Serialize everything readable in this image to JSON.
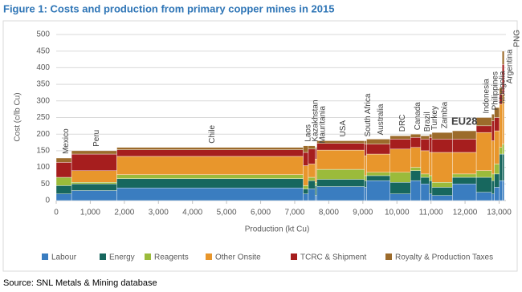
{
  "chart_data": {
    "type": "variable-width-stacked-bar",
    "title": "Figure 1: Costs and production from primary copper mines in 2015",
    "source": "Source: SNL Metals & Mining database",
    "x_label": "Production (kt Cu)",
    "y_label": "Cost (c/lb Cu)",
    "categories": [
      "Mexico",
      "Peru",
      "Chile",
      "Laos",
      "Kazakhstan",
      "Mauritania",
      "USA",
      "South Africa",
      "Australia",
      "DRC",
      "Canada",
      "Brazil",
      "Turkey",
      "Zambia",
      "EU28",
      "Indonesia",
      "Philippines",
      "Mongolia",
      "Argentina",
      "PNG"
    ],
    "highlight": "EU28",
    "production": [
      450,
      1330,
      5470,
      150,
      200,
      50,
      1400,
      60,
      690,
      600,
      300,
      250,
      80,
      600,
      700,
      450,
      80,
      150,
      80,
      60
    ],
    "series": [
      {
        "name": "Labour",
        "color": "#3a7dc0",
        "values": [
          20,
          30,
          38,
          20,
          35,
          15,
          42,
          40,
          60,
          20,
          60,
          50,
          20,
          15,
          50,
          25,
          20,
          40,
          60,
          60
        ]
      },
      {
        "name": "Energy",
        "color": "#17675e",
        "values": [
          25,
          20,
          28,
          15,
          25,
          30,
          22,
          20,
          15,
          35,
          30,
          20,
          40,
          25,
          20,
          45,
          40,
          40,
          80,
          80
        ]
      },
      {
        "name": "Reagents",
        "color": "#9bbb3b",
        "values": [
          25,
          5,
          12,
          10,
          10,
          10,
          30,
          15,
          10,
          30,
          10,
          10,
          15,
          15,
          10,
          20,
          20,
          30,
          20,
          30
        ]
      },
      {
        "name": "Other Onsite",
        "color": "#e8962c",
        "values": [
          0,
          35,
          55,
          60,
          40,
          70,
          58,
          60,
          55,
          70,
          60,
          70,
          70,
          90,
          65,
          115,
          100,
          100,
          130,
          150
        ]
      },
      {
        "name": "TCRC & Shipment",
        "color": "#a61e1e",
        "values": [
          45,
          50,
          20,
          40,
          45,
          30,
          20,
          35,
          30,
          30,
          30,
          35,
          45,
          40,
          40,
          20,
          60,
          40,
          30,
          90
        ]
      },
      {
        "name": "Royalty & Production Taxes",
        "color": "#9c6b2b",
        "values": [
          13,
          10,
          7,
          20,
          10,
          5,
          8,
          10,
          15,
          10,
          10,
          10,
          10,
          20,
          25,
          25,
          20,
          30,
          20,
          40
        ]
      }
    ],
    "xlim": [
      0,
      13200
    ],
    "xticks": [
      0,
      {
        "value": 1000,
        "label": "1,000"
      },
      {
        "value": 2000,
        "label": "2,000"
      },
      {
        "value": 3000,
        "label": "3,000"
      },
      {
        "value": 4000,
        "label": "4,000"
      },
      {
        "value": 5000,
        "label": "5,000"
      },
      {
        "value": 6000,
        "label": "6,000"
      },
      {
        "value": 7000,
        "label": "7,000"
      },
      {
        "value": 8000,
        "label": "8,000"
      },
      {
        "value": 9000,
        "label": "9,000"
      },
      {
        "value": 10000,
        "label": "10,000"
      },
      {
        "value": 11000,
        "label": "11,000"
      },
      {
        "value": 12000,
        "label": "12,000"
      },
      {
        "value": 13000,
        "label": "13,000"
      }
    ],
    "ylim": [
      0,
      500
    ],
    "yticks": [
      0,
      50,
      100,
      150,
      200,
      250,
      300,
      350,
      400,
      450,
      500
    ],
    "grid": true,
    "legend": "bottom"
  }
}
